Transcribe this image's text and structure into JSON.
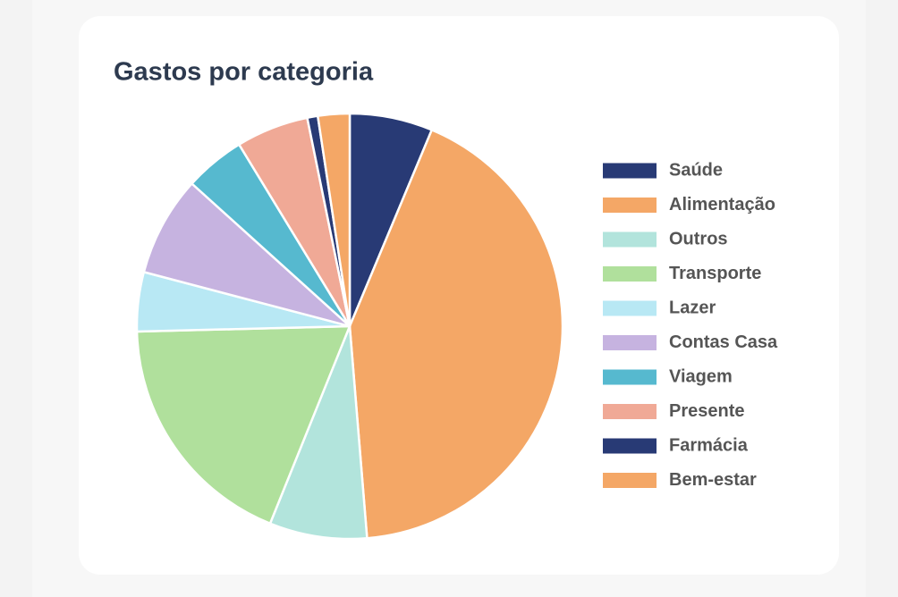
{
  "chart_data": {
    "type": "pie",
    "title": "Gastos por categoria",
    "categories": [
      "Saúde",
      "Alimentação",
      "Outros",
      "Transporte",
      "Lazer",
      "Contas Casa",
      "Viagem",
      "Presente",
      "Farmácia",
      "Bem-estar"
    ],
    "values": [
      6.3,
      42.4,
      7.4,
      18.5,
      4.5,
      7.6,
      4.6,
      5.5,
      0.8,
      2.4
    ],
    "colors": [
      "#283a75",
      "#f4a766",
      "#b2e4dc",
      "#b0e09c",
      "#b8e8f4",
      "#c6b3e0",
      "#56b9cf",
      "#f0a996",
      "#283a75",
      "#f4a766"
    ],
    "legend": "right"
  }
}
